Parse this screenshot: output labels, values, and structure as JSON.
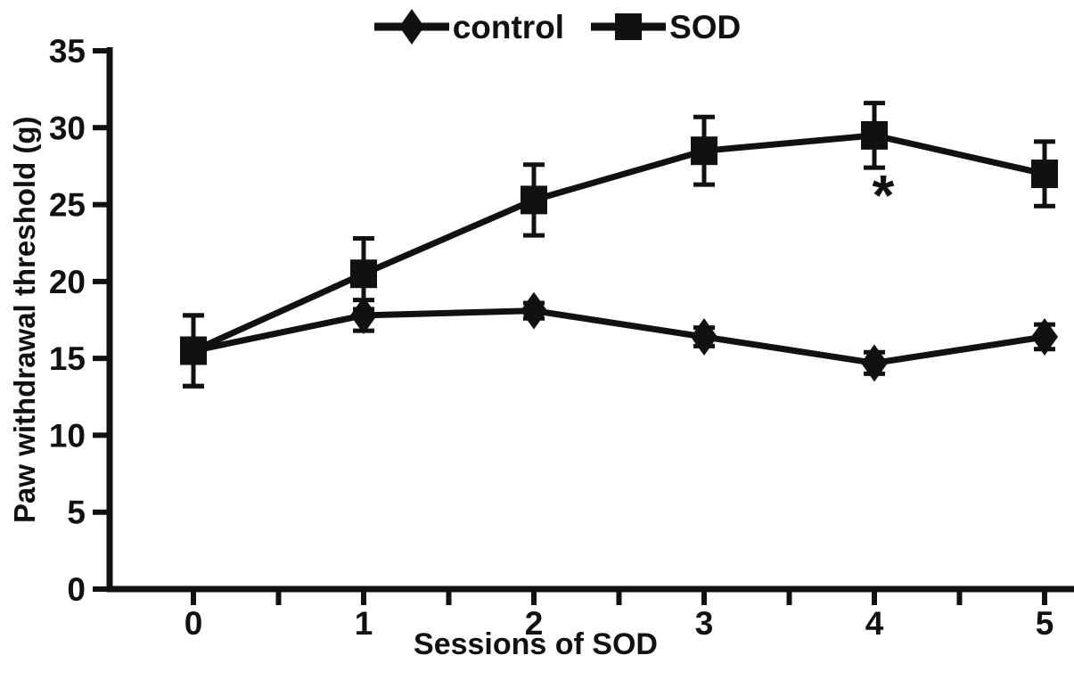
{
  "figure": {
    "background": "#ffffff",
    "ink_color": "#111111"
  },
  "legend": {
    "items": [
      {
        "label": "control",
        "marker": "diamond"
      },
      {
        "label": "SOD",
        "marker": "square"
      }
    ]
  },
  "chart_data": {
    "type": "line",
    "title": "",
    "xlabel": "Sessions of SOD",
    "ylabel": "Paw withdrawal threshold (g)",
    "x": [
      0,
      1,
      2,
      3,
      4,
      5
    ],
    "xticks": [
      0,
      1,
      2,
      3,
      4,
      5
    ],
    "xtick_minor_interval": 0.5,
    "ylim": [
      0,
      35
    ],
    "yticks": [
      0,
      5,
      10,
      15,
      20,
      25,
      30,
      35
    ],
    "grid": false,
    "legend_position": "top-center",
    "series": [
      {
        "name": "control",
        "marker": "diamond",
        "values": [
          15.5,
          17.8,
          18.1,
          16.4,
          14.7,
          16.4
        ],
        "errors": [
          2.3,
          1.0,
          0.5,
          0.6,
          0.7,
          0.8
        ],
        "marker_visible": [
          false,
          true,
          true,
          true,
          true,
          true
        ]
      },
      {
        "name": "SOD",
        "marker": "square",
        "values": [
          15.5,
          20.5,
          25.3,
          28.5,
          29.5,
          27.0
        ],
        "errors": [
          2.3,
          2.3,
          2.3,
          2.2,
          2.1,
          2.1
        ],
        "marker_visible": [
          true,
          true,
          true,
          true,
          true,
          true
        ]
      }
    ],
    "annotations": [
      {
        "text": "*",
        "x": 4,
        "y": 25.5
      }
    ]
  }
}
